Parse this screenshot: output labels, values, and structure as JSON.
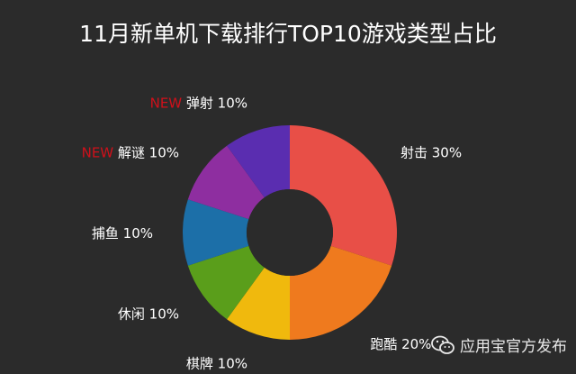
{
  "chart_title": "11月新单机下载排行TOP10游戏类型占比",
  "watermark": "应用宝官方发布",
  "chart_data": {
    "type": "pie",
    "title": "11月新单机下载排行TOP10游戏类型占比",
    "slices": [
      {
        "label": "射击",
        "value": 30,
        "value_label": "30%",
        "color": "#e84f47",
        "tag": ""
      },
      {
        "label": "跑酷",
        "value": 20,
        "value_label": "20%",
        "color": "#ef7a1e",
        "tag": ""
      },
      {
        "label": "棋牌",
        "value": 10,
        "value_label": "10%",
        "color": "#f0b90d",
        "tag": ""
      },
      {
        "label": "休闲",
        "value": 10,
        "value_label": "10%",
        "color": "#5a9e1b",
        "tag": ""
      },
      {
        "label": "捕鱼",
        "value": 10,
        "value_label": "10%",
        "color": "#1c6fa8",
        "tag": ""
      },
      {
        "label": "解谜",
        "value": 10,
        "value_label": "10%",
        "color": "#8e2ea0",
        "tag": "NEW"
      },
      {
        "label": "弹射",
        "value": 10,
        "value_label": "10%",
        "color": "#5a2db0",
        "tag": "NEW"
      }
    ],
    "tag_color": "#d0101a",
    "label_color": "#ffffff"
  }
}
